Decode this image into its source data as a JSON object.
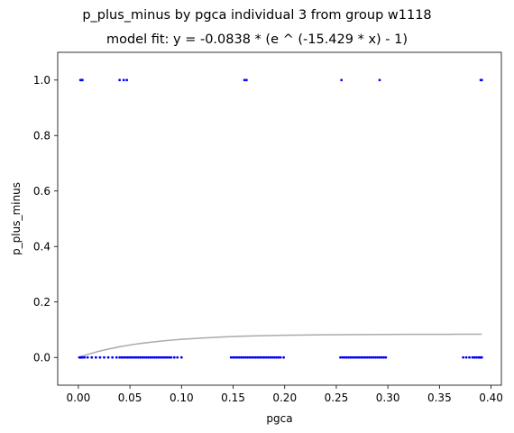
{
  "chart_data": {
    "type": "scatter",
    "title": "p_plus_minus by pgca individual 3 from group w1118",
    "subtitle": "model fit: y = -0.0838 * (e ^ (-15.429 * x) - 1)",
    "xlabel": "pgca",
    "ylabel": "p_plus_minus",
    "xlim": [
      -0.02,
      0.41
    ],
    "ylim": [
      -0.1,
      1.1
    ],
    "x_ticks": [
      0.0,
      0.05,
      0.1,
      0.15,
      0.2,
      0.25,
      0.3,
      0.35,
      0.4
    ],
    "x_tick_labels": [
      "0.00",
      "0.05",
      "0.10",
      "0.15",
      "0.20",
      "0.25",
      "0.30",
      "0.35",
      "0.40"
    ],
    "y_ticks": [
      0.0,
      0.2,
      0.4,
      0.6,
      0.8,
      1.0
    ],
    "y_tick_labels": [
      "0.0",
      "0.2",
      "0.4",
      "0.6",
      "0.8",
      "1.0"
    ],
    "grid": false,
    "legend": "none",
    "series": [
      {
        "kind": "scatter",
        "color": "#0000ff",
        "x": [
          0.002,
          0.003,
          0.004,
          0.04,
          0.044,
          0.047,
          0.161,
          0.163,
          0.255,
          0.292,
          0.39,
          0.391,
          0.001,
          0.002,
          0.003,
          0.004,
          0.006,
          0.009,
          0.013,
          0.017,
          0.021,
          0.025,
          0.029,
          0.033,
          0.037,
          0.04,
          0.042,
          0.044,
          0.046,
          0.048,
          0.05,
          0.052,
          0.054,
          0.056,
          0.058,
          0.06,
          0.062,
          0.064,
          0.066,
          0.068,
          0.07,
          0.072,
          0.074,
          0.076,
          0.078,
          0.08,
          0.082,
          0.084,
          0.086,
          0.088,
          0.09,
          0.093,
          0.096,
          0.1,
          0.148,
          0.15,
          0.152,
          0.154,
          0.156,
          0.158,
          0.16,
          0.162,
          0.164,
          0.166,
          0.168,
          0.17,
          0.172,
          0.174,
          0.176,
          0.178,
          0.18,
          0.182,
          0.184,
          0.186,
          0.188,
          0.19,
          0.192,
          0.194,
          0.196,
          0.199,
          0.254,
          0.256,
          0.258,
          0.26,
          0.262,
          0.264,
          0.266,
          0.268,
          0.27,
          0.272,
          0.274,
          0.276,
          0.278,
          0.28,
          0.282,
          0.284,
          0.286,
          0.288,
          0.29,
          0.292,
          0.294,
          0.296,
          0.298,
          0.373,
          0.376,
          0.379,
          0.382,
          0.384,
          0.386,
          0.388,
          0.389,
          0.39,
          0.391
        ],
        "y": [
          1,
          1,
          1,
          1,
          1,
          1,
          1,
          1,
          1,
          1,
          1,
          1,
          0,
          0,
          0,
          0,
          0,
          0,
          0,
          0,
          0,
          0,
          0,
          0,
          0,
          0,
          0,
          0,
          0,
          0,
          0,
          0,
          0,
          0,
          0,
          0,
          0,
          0,
          0,
          0,
          0,
          0,
          0,
          0,
          0,
          0,
          0,
          0,
          0,
          0,
          0,
          0,
          0,
          0,
          0,
          0,
          0,
          0,
          0,
          0,
          0,
          0,
          0,
          0,
          0,
          0,
          0,
          0,
          0,
          0,
          0,
          0,
          0,
          0,
          0,
          0,
          0,
          0,
          0,
          0,
          0,
          0,
          0,
          0,
          0,
          0,
          0,
          0,
          0,
          0,
          0,
          0,
          0,
          0,
          0,
          0,
          0,
          0,
          0,
          0,
          0,
          0,
          0,
          0,
          0,
          0,
          0,
          0,
          0,
          0,
          0,
          0,
          0
        ]
      },
      {
        "kind": "line",
        "color": "#aaaaaa",
        "x": [
          0.0,
          0.01,
          0.02,
          0.03,
          0.04,
          0.05,
          0.06,
          0.07,
          0.08,
          0.09,
          0.1,
          0.12,
          0.14,
          0.16,
          0.18,
          0.2,
          0.22,
          0.24,
          0.26,
          0.28,
          0.3,
          0.32,
          0.34,
          0.36,
          0.38,
          0.391
        ],
        "y": [
          0.0,
          0.012,
          0.0223,
          0.031,
          0.0385,
          0.0449,
          0.0504,
          0.055,
          0.059,
          0.0624,
          0.0653,
          0.07,
          0.074,
          0.0767,
          0.0786,
          0.08,
          0.081,
          0.0818,
          0.0823,
          0.0827,
          0.083,
          0.0832,
          0.0834,
          0.0835,
          0.0836,
          0.0836
        ]
      }
    ]
  }
}
